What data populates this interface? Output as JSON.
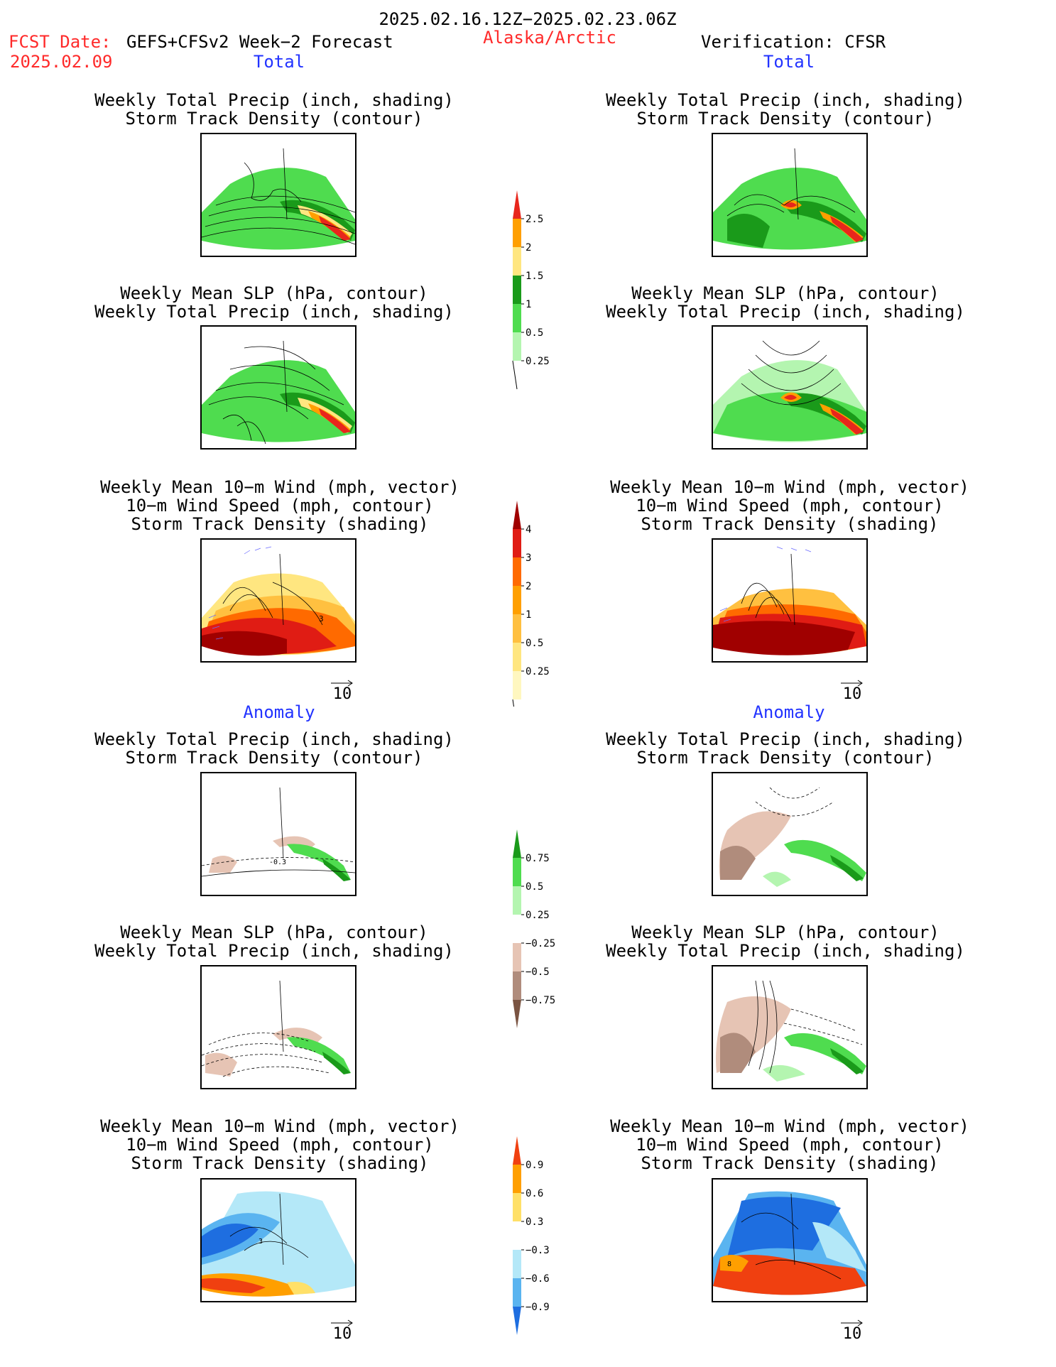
{
  "header": {
    "valid_period": "2025.02.16.12Z−2025.02.23.06Z",
    "fcst_label": "FCST Date:",
    "model": "GEFS+CFSv2 Week−2 Forecast",
    "fcst_date": "2025.02.09",
    "region": "Alaska/Arctic",
    "verification": "Verification: CFSR"
  },
  "sections": {
    "total_left": "Total",
    "total_right": "Total",
    "anom_left": "Anomaly",
    "anom_right": "Anomaly"
  },
  "titles": {
    "precip_storm": [
      "Weekly Total Precip (inch, shading)",
      "Storm Track Density (contour)"
    ],
    "slp_precip": [
      "Weekly Mean SLP (hPa, contour)",
      "Weekly Total Precip (inch, shading)"
    ],
    "wind": [
      "Weekly Mean 10−m Wind (mph, vector)",
      "10−m Wind Speed (mph, contour)",
      "Storm Track Density (shading)"
    ]
  },
  "panel_labels": {
    "total_wind_left": "3",
    "anom_precip_left": "-0.3",
    "anom_wind_left": "3",
    "anom_wind_right": "8"
  },
  "arrow_ref": "10",
  "colorbars": {
    "total_precip": {
      "labels": [
        "2.5",
        "2",
        "1.5",
        "1",
        "0.5",
        "0.25"
      ],
      "colors": [
        "#e8261c",
        "#ff9f00",
        "#ffe680",
        "#1a9a1a",
        "#4fdc4f",
        "#b4f5b0"
      ]
    },
    "total_storm": {
      "labels": [
        "4",
        "3",
        "2",
        "1",
        "0.5",
        "0.25"
      ],
      "colors": [
        "#a00000",
        "#e01c14",
        "#ff6a00",
        "#ff9f00",
        "#ffc040",
        "#ffe680",
        "#fff7c0"
      ]
    },
    "anom_precip": {
      "labels": [
        "0.75",
        "0.5",
        "0.25",
        "−0.25",
        "−0.5",
        "−0.75"
      ],
      "colors": [
        "#1a9a1a",
        "#4fdc4f",
        "#b4f5b0",
        "#ffffff",
        "#e6c4b4",
        "#b08c7c",
        "#7a5442"
      ]
    },
    "anom_storm": {
      "labels": [
        "0.9",
        "0.6",
        "0.3",
        "−0.3",
        "−0.6",
        "−0.9"
      ],
      "colors": [
        "#f04010",
        "#ff9f00",
        "#ffe068",
        "#ffffff",
        "#b4e8f8",
        "#5ab4f0",
        "#1e6ee0"
      ]
    }
  }
}
